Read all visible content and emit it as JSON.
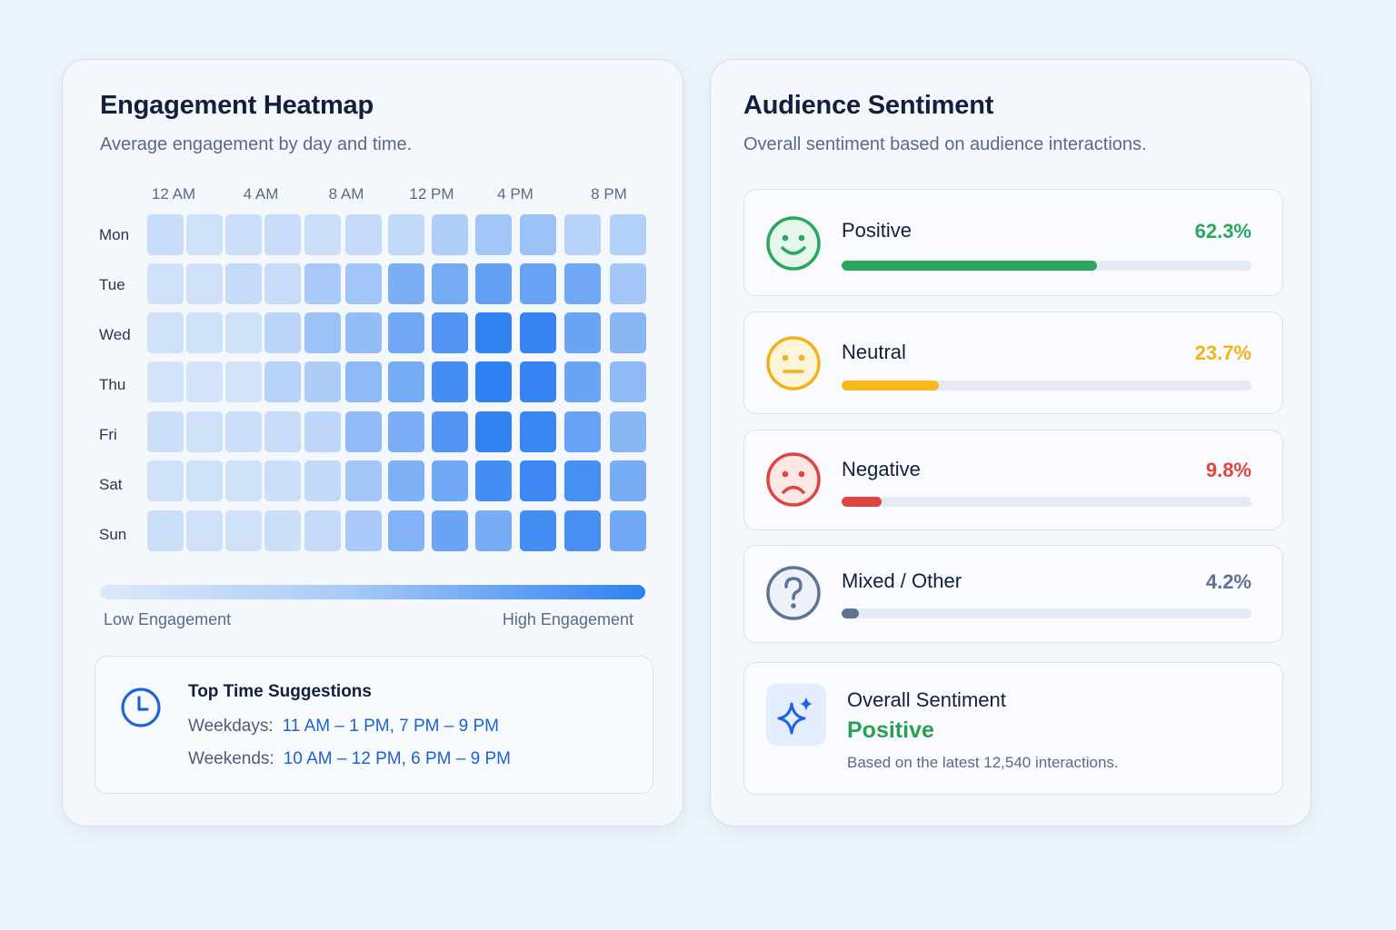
{
  "heatmap": {
    "title": "Engagement Heatmap",
    "subtitle": "Average engagement by day and time.",
    "time_labels": [
      "12 AM",
      "4 AM",
      "8 AM",
      "12 PM",
      "4 PM",
      "8 PM"
    ],
    "days": [
      "Mon",
      "Tue",
      "Wed",
      "Thu",
      "Fri",
      "Sat",
      "Sun"
    ],
    "low_label": "Low Engagement",
    "high_label": "High Engagement",
    "low_color": "#dde9fa",
    "high_color": "#2f80f2"
  },
  "chart_data": {
    "type": "heatmap",
    "x_ticks": [
      "12 AM",
      "4 AM",
      "8 AM",
      "12 PM",
      "4 PM",
      "8 PM"
    ],
    "rows": [
      "Mon",
      "Tue",
      "Wed",
      "Thu",
      "Fri",
      "Sat",
      "Sun"
    ],
    "columns_count": 12,
    "values": [
      [
        0.12,
        0.08,
        0.1,
        0.12,
        0.1,
        0.14,
        0.16,
        0.26,
        0.34,
        0.38,
        0.22,
        0.24
      ],
      [
        0.08,
        0.08,
        0.14,
        0.12,
        0.3,
        0.34,
        0.56,
        0.6,
        0.7,
        0.68,
        0.62,
        0.32
      ],
      [
        0.08,
        0.08,
        0.08,
        0.2,
        0.38,
        0.42,
        0.62,
        0.8,
        0.98,
        0.96,
        0.66,
        0.48
      ],
      [
        0.06,
        0.06,
        0.06,
        0.22,
        0.28,
        0.46,
        0.6,
        0.88,
        1.0,
        0.96,
        0.66,
        0.46
      ],
      [
        0.1,
        0.08,
        0.1,
        0.12,
        0.18,
        0.44,
        0.56,
        0.8,
        0.98,
        0.94,
        0.68,
        0.48
      ],
      [
        0.08,
        0.08,
        0.08,
        0.1,
        0.16,
        0.32,
        0.54,
        0.62,
        0.88,
        0.92,
        0.86,
        0.58
      ],
      [
        0.1,
        0.08,
        0.08,
        0.1,
        0.14,
        0.3,
        0.52,
        0.66,
        0.58,
        0.88,
        0.86,
        0.62
      ]
    ],
    "scale": [
      0,
      1
    ],
    "legend": "bottom"
  },
  "suggestions": {
    "title": "Top Time Suggestions",
    "weekdays_label": "Weekdays:",
    "weekdays_value": "11 AM – 1 PM,  7 PM – 9 PM",
    "weekends_label": "Weekends:",
    "weekends_value": "10 AM – 12 PM,  6 PM – 9 PM",
    "icon": "clock-icon"
  },
  "sentiment": {
    "title": "Audience Sentiment",
    "subtitle": "Overall sentiment based on audience interactions.",
    "items": [
      {
        "label": "Positive",
        "percent": "62.3%",
        "value": 62.3,
        "color": "#2aa75a",
        "icon": "smile-icon"
      },
      {
        "label": "Neutral",
        "percent": "23.7%",
        "value": 23.7,
        "color": "#f8b91c",
        "icon": "neutral-face-icon"
      },
      {
        "label": "Negative",
        "percent": "9.8%",
        "value": 9.8,
        "color": "#e0443e",
        "icon": "frown-icon"
      },
      {
        "label": "Mixed / Other",
        "percent": "4.2%",
        "value": 4.2,
        "color": "#5f7396",
        "icon": "question-icon"
      }
    ],
    "overall": {
      "title": "Overall Sentiment",
      "value": "Positive",
      "note": "Based on the latest 12,540 interactions.",
      "icon": "sparkle-icon"
    }
  }
}
